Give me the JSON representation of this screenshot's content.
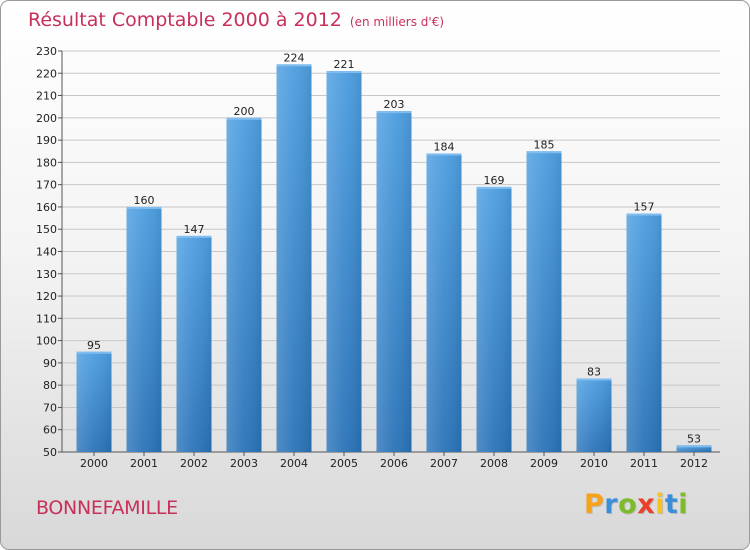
{
  "header": {
    "title": "Résultat Comptable 2000 à 2012",
    "subtitle": "(en milliers d'€)"
  },
  "footer": {
    "place": "BONNEFAMILLE",
    "logo": {
      "letters": [
        "P",
        "r",
        "o",
        "x",
        "i",
        "t",
        "i"
      ],
      "colors": [
        "#f7a21b",
        "#3a8ed8",
        "#7dbb2a",
        "#e8402a",
        "#f7c21b",
        "#3a8ed8",
        "#7dbb2a"
      ]
    }
  },
  "colors": {
    "bar": "#3d8fd6",
    "bar_dark": "#2a73b8",
    "title": "#c8305a",
    "grid": "#c7c7c7"
  },
  "chart_data": {
    "type": "bar",
    "title": "Résultat Comptable 2000 à 2012",
    "subtitle": "(en milliers d'€)",
    "xlabel": "",
    "ylabel": "",
    "categories": [
      "2000",
      "2001",
      "2002",
      "2003",
      "2004",
      "2005",
      "2006",
      "2007",
      "2008",
      "2009",
      "2010",
      "2011",
      "2012"
    ],
    "values": [
      95,
      160,
      147,
      200,
      224,
      221,
      203,
      184,
      169,
      185,
      83,
      157,
      53
    ],
    "ylim": [
      50,
      230
    ],
    "yticks": [
      50,
      60,
      70,
      80,
      90,
      100,
      110,
      120,
      130,
      140,
      150,
      160,
      170,
      180,
      190,
      200,
      210,
      220,
      230
    ],
    "grid": true
  }
}
